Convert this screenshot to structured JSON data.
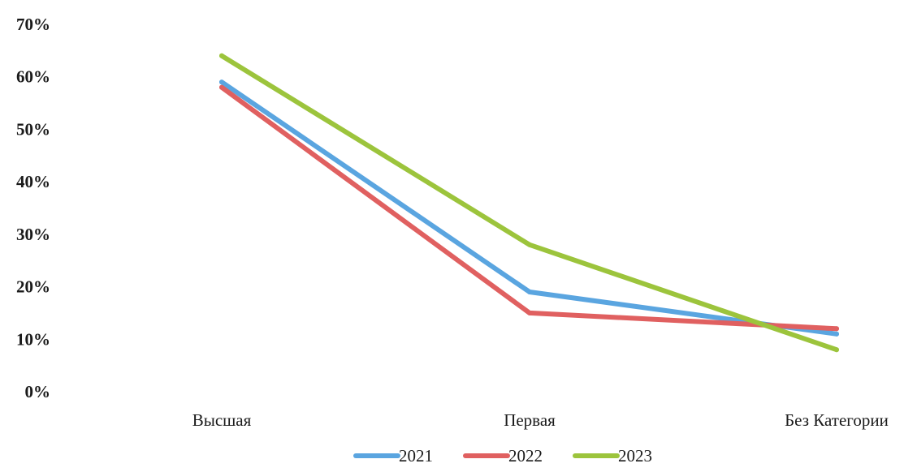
{
  "chart_data": {
    "type": "line",
    "title": "",
    "xlabel": "",
    "ylabel": "",
    "categories": [
      "Высшая",
      "Первая",
      "Без Категории"
    ],
    "y_tick_labels": [
      "0%",
      "10%",
      "20%",
      "30%",
      "40%",
      "50%",
      "60%",
      "70%"
    ],
    "ylim": [
      0,
      70
    ],
    "y_unit": "%",
    "grid": false,
    "legend_position": "bottom",
    "series": [
      {
        "name": "2021",
        "values": [
          59,
          19,
          11
        ],
        "color": "#5aa5e0"
      },
      {
        "name": "2022",
        "values": [
          58,
          15,
          12
        ],
        "color": "#e06060"
      },
      {
        "name": "2023",
        "values": [
          64,
          28,
          8
        ],
        "color": "#9cc43c"
      }
    ]
  }
}
